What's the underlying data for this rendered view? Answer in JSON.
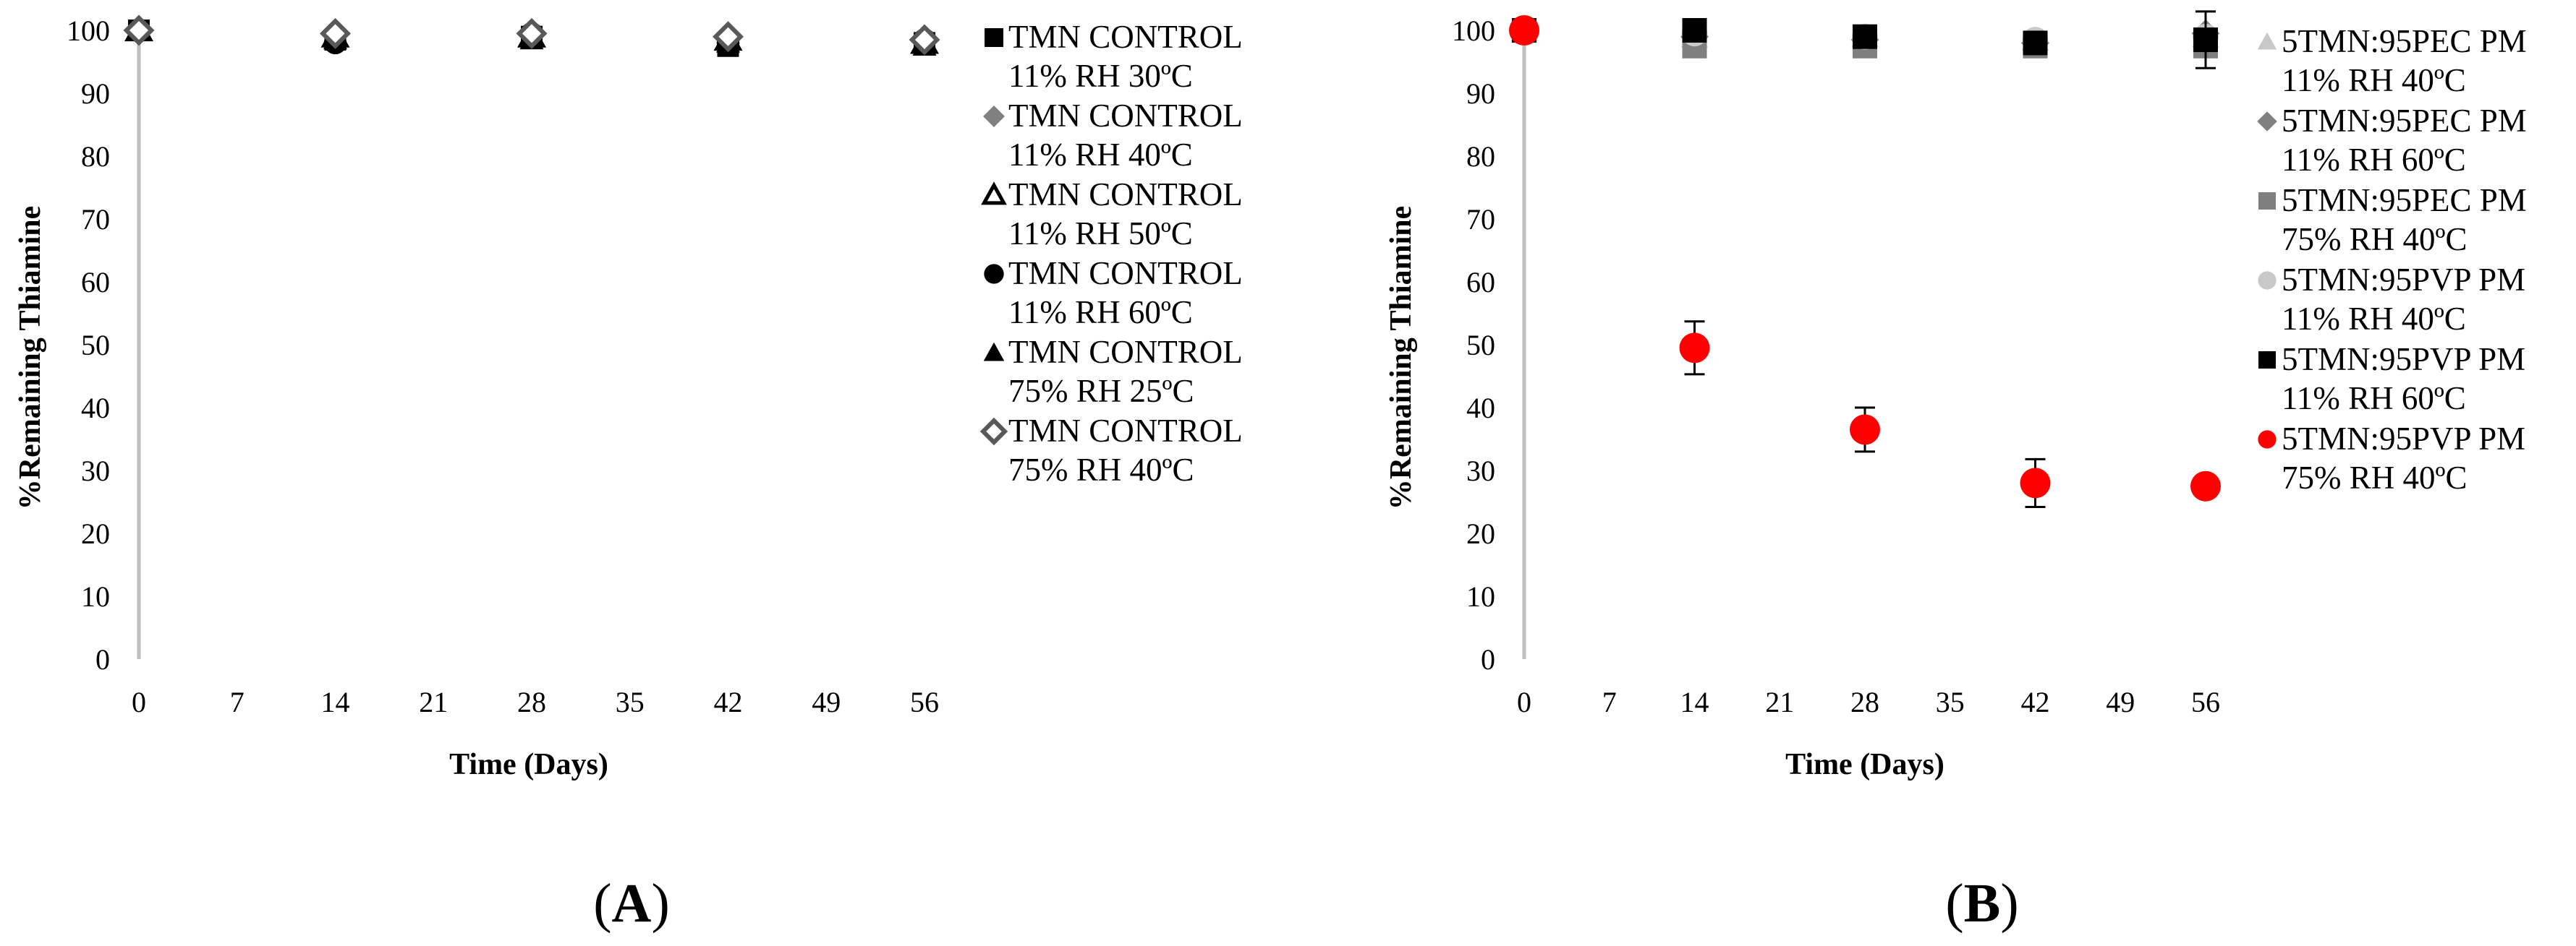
{
  "chart_data": [
    {
      "type": "scatter",
      "panel_label": "A",
      "xlabel": "Time (Days)",
      "ylabel": "%Remaining Thiamine",
      "xlim": [
        0,
        56
      ],
      "ylim": [
        0,
        100
      ],
      "xticks": [
        0,
        7,
        14,
        21,
        28,
        35,
        42,
        49,
        56
      ],
      "yticks": [
        0,
        10,
        20,
        30,
        40,
        50,
        60,
        70,
        80,
        90,
        100
      ],
      "legend_position": "right",
      "series": [
        {
          "name": "TMN CONTROL 11% RH 30ºC",
          "name_line1": "TMN CONTROL",
          "name_line2": "11% RH 30ºC",
          "marker": "square",
          "color": "#000000",
          "x": [
            0,
            14,
            28,
            42,
            56
          ],
          "y": [
            100,
            98.5,
            99,
            97.5,
            98
          ],
          "err": [
            0,
            0.8,
            0.6,
            0.8,
            1.5
          ]
        },
        {
          "name": "TMN CONTROL 11% RH 40ºC",
          "name_line1": "TMN CONTROL",
          "name_line2": "11% RH 40ºC",
          "marker": "diamond",
          "color": "#808080",
          "x": [
            0,
            14,
            28,
            42,
            56
          ],
          "y": [
            100,
            99.5,
            99.5,
            99,
            98.5
          ],
          "err": [
            0,
            0.5,
            0.5,
            0.6,
            0.8
          ]
        },
        {
          "name": "TMN CONTROL 11% RH 50ºC",
          "name_line1": "TMN CONTROL",
          "name_line2": "11% RH 50ºC",
          "marker": "triangle-open",
          "color": "#000000",
          "x": [
            0,
            14,
            28,
            42,
            56
          ],
          "y": [
            100,
            99,
            99,
            98.5,
            98
          ],
          "err": [
            0,
            0.5,
            0.5,
            0.6,
            0.8
          ]
        },
        {
          "name": "TMN CONTROL 11% RH 60ºC",
          "name_line1": "TMN CONTROL",
          "name_line2": "11% RH 60ºC",
          "marker": "circle",
          "color": "#000000",
          "x": [
            0,
            14,
            28,
            42,
            56
          ],
          "y": [
            100,
            98,
            99.5,
            98,
            98.5
          ],
          "err": [
            0,
            0.6,
            0.5,
            0.8,
            0.8
          ]
        },
        {
          "name": "TMN CONTROL 75% RH 25ºC",
          "name_line1": "TMN CONTROL",
          "name_line2": "75% RH 25ºC",
          "marker": "triangle",
          "color": "#000000",
          "x": [
            0,
            14,
            28,
            42,
            56
          ],
          "y": [
            100,
            98.5,
            98.5,
            98,
            97.5
          ],
          "err": [
            0,
            0.6,
            0.6,
            0.8,
            1.2
          ]
        },
        {
          "name": "TMN CONTROL 75% RH 40ºC",
          "name_line1": "TMN CONTROL",
          "name_line2": "75% RH 40ºC",
          "marker": "diamond-open",
          "color": "#595959",
          "x": [
            0,
            14,
            28,
            42,
            56
          ],
          "y": [
            100,
            99.5,
            99.5,
            99,
            98.5
          ],
          "err": [
            0,
            0.5,
            0.5,
            0.6,
            0.8
          ]
        }
      ]
    },
    {
      "type": "scatter",
      "panel_label": "B",
      "xlabel": "Time (Days)",
      "ylabel": "%Remaining Thiamine",
      "xlim": [
        0,
        56
      ],
      "ylim": [
        0,
        100
      ],
      "xticks": [
        0,
        7,
        14,
        21,
        28,
        35,
        42,
        49,
        56
      ],
      "yticks": [
        0,
        10,
        20,
        30,
        40,
        50,
        60,
        70,
        80,
        90,
        100
      ],
      "legend_position": "right",
      "series": [
        {
          "name": "5TMN:95PEC PM 11% RH 40ºC",
          "name_line1": "5TMN:95PEC PM",
          "name_line2": "11% RH 40ºC",
          "marker": "triangle",
          "color": "#C8C8C8",
          "x": [
            0,
            14,
            28,
            42,
            56
          ],
          "y": [
            100,
            99,
            99,
            98.5,
            99
          ],
          "err": [
            0,
            0.5,
            0.5,
            0.5,
            0.8
          ]
        },
        {
          "name": "5TMN:95PEC PM 11% RH 60ºC",
          "name_line1": "5TMN:95PEC PM",
          "name_line2": "11% RH 60ºC",
          "marker": "diamond",
          "color": "#808080",
          "x": [
            0,
            14,
            28,
            42,
            56
          ],
          "y": [
            100,
            99,
            98.5,
            98,
            99.5
          ],
          "err": [
            0,
            0.5,
            0.5,
            0.5,
            0.8
          ]
        },
        {
          "name": "5TMN:95PEC PM 75% RH 40ºC",
          "name_line1": "5TMN:95PEC PM",
          "name_line2": "75% RH 40ºC",
          "marker": "square",
          "color": "#7F7F7F",
          "x": [
            0,
            14,
            28,
            42,
            56
          ],
          "y": [
            100,
            97.5,
            97.5,
            97.5,
            97.5
          ],
          "err": [
            0,
            0.8,
            0.8,
            0.8,
            1.0
          ]
        },
        {
          "name": "5TMN:95PVP PM 11% RH 40ºC",
          "name_line1": "5TMN:95PVP PM",
          "name_line2": "11% RH 40ºC",
          "marker": "circle",
          "color": "#C8C8C8",
          "x": [
            0,
            14,
            28,
            42,
            56
          ],
          "y": [
            100,
            99.5,
            99,
            98.5,
            99
          ],
          "err": [
            0,
            0.5,
            0.5,
            0.5,
            0.8
          ]
        },
        {
          "name": "5TMN:95PVP PM 11% RH 60ºC",
          "name_line1": "5TMN:95PVP PM",
          "name_line2": "11% RH 60ºC",
          "marker": "square",
          "color": "#000000",
          "x": [
            0,
            14,
            28,
            42,
            56
          ],
          "y": [
            100,
            100,
            99,
            98,
            98.5
          ],
          "err": [
            0,
            0.5,
            0.6,
            0.6,
            4.5
          ]
        },
        {
          "name": "5TMN:95PVP PM 75% RH 40ºC",
          "name_line1": "5TMN:95PVP PM",
          "name_line2": "75% RH 40ºC",
          "marker": "circle",
          "color": "#FF0000",
          "x": [
            0,
            14,
            28,
            42,
            56
          ],
          "y": [
            100,
            49.5,
            36.5,
            28,
            27.5
          ],
          "err": [
            0,
            4.2,
            3.5,
            3.8,
            0.8
          ]
        }
      ]
    }
  ]
}
